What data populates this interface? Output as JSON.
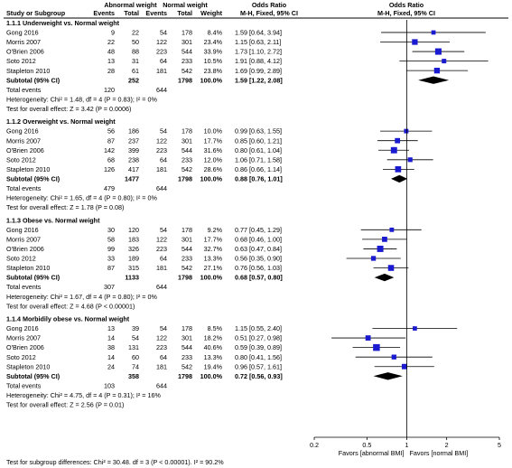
{
  "header": {
    "study_label": "Study or Subgroup",
    "group1_label": "Abnormal weight",
    "group2_label": "Normal weight",
    "events_label": "Events",
    "total_label": "Total",
    "weight_label": "Weight",
    "or_label": "Odds Ratio",
    "or_method_label": "M-H, Fixed, 95% CI"
  },
  "chart_data": {
    "type": "forest",
    "x_scale": "log",
    "xlim": [
      0.2,
      5
    ],
    "ticks": [
      "0.2",
      "0.5",
      "1",
      "2",
      "5"
    ],
    "axis_left_label": "Favors [abnormal BMI]",
    "axis_right_label": "Favors [normal BMI]",
    "subgroups": [
      {
        "title": "1.1.1 Underweight vs. Normal weight",
        "studies": [
          {
            "name": "Gong 2016",
            "e1": "9",
            "t1": "22",
            "e2": "54",
            "t2": "178",
            "weight": "8.4%",
            "or_text": "1.59 [0.64, 3.94]",
            "or": 1.59,
            "lo": 0.64,
            "hi": 3.94
          },
          {
            "name": "Morris 2007",
            "e1": "22",
            "t1": "50",
            "e2": "122",
            "t2": "301",
            "weight": "23.4%",
            "or_text": "1.15 [0.63, 2.11]",
            "or": 1.15,
            "lo": 0.63,
            "hi": 2.11
          },
          {
            "name": "O'Brien 2006",
            "e1": "48",
            "t1": "88",
            "e2": "223",
            "t2": "544",
            "weight": "33.9%",
            "or_text": "1.73 [1.10, 2.72]",
            "or": 1.73,
            "lo": 1.1,
            "hi": 2.72
          },
          {
            "name": "Soto 2012",
            "e1": "13",
            "t1": "31",
            "e2": "64",
            "t2": "233",
            "weight": "10.5%",
            "or_text": "1.91 [0.88, 4.12]",
            "or": 1.91,
            "lo": 0.88,
            "hi": 4.12
          },
          {
            "name": "Stapleton 2010",
            "e1": "28",
            "t1": "61",
            "e2": "181",
            "t2": "542",
            "weight": "23.8%",
            "or_text": "1.69 [0.99, 2.89]",
            "or": 1.69,
            "lo": 0.99,
            "hi": 2.89
          }
        ],
        "subtotal": {
          "label": "Subtotal (95% CI)",
          "t1": "252",
          "t2": "1798",
          "weight": "100.0%",
          "or_text": "1.59 [1.22, 2.08]",
          "or": 1.59,
          "lo": 1.22,
          "hi": 2.08
        },
        "total_events": {
          "label": "Total events",
          "e1": "120",
          "e2": "644"
        },
        "heterogeneity": "Heterogeneity: Chi² = 1.48, df = 4 (P = 0.83); I² = 0%",
        "overall_effect": "Test for overall effect: Z = 3.42 (P = 0.0006)"
      },
      {
        "title": "1.1.2 Overweight vs. Normal weight",
        "studies": [
          {
            "name": "Gong 2016",
            "e1": "56",
            "t1": "186",
            "e2": "54",
            "t2": "178",
            "weight": "10.0%",
            "or_text": "0.99 [0.63, 1.55]",
            "or": 0.99,
            "lo": 0.63,
            "hi": 1.55
          },
          {
            "name": "Morris 2007",
            "e1": "87",
            "t1": "237",
            "e2": "122",
            "t2": "301",
            "weight": "17.7%",
            "or_text": "0.85 [0.60, 1.21]",
            "or": 0.85,
            "lo": 0.6,
            "hi": 1.21
          },
          {
            "name": "O'Brien 2006",
            "e1": "142",
            "t1": "399",
            "e2": "223",
            "t2": "544",
            "weight": "31.6%",
            "or_text": "0.80 [0.61, 1.04]",
            "or": 0.8,
            "lo": 0.61,
            "hi": 1.04
          },
          {
            "name": "Soto 2012",
            "e1": "68",
            "t1": "238",
            "e2": "64",
            "t2": "233",
            "weight": "12.0%",
            "or_text": "1.06 [0.71, 1.58]",
            "or": 1.06,
            "lo": 0.71,
            "hi": 1.58
          },
          {
            "name": "Stapleton 2010",
            "e1": "126",
            "t1": "417",
            "e2": "181",
            "t2": "542",
            "weight": "28.6%",
            "or_text": "0.86 [0.66, 1.14]",
            "or": 0.86,
            "lo": 0.66,
            "hi": 1.14
          }
        ],
        "subtotal": {
          "label": "Subtotal (95% CI)",
          "t1": "1477",
          "t2": "1798",
          "weight": "100.0%",
          "or_text": "0.88 [0.76, 1.01]",
          "or": 0.88,
          "lo": 0.76,
          "hi": 1.01
        },
        "total_events": {
          "label": "Total events",
          "e1": "479",
          "e2": "644"
        },
        "heterogeneity": "Heterogeneity: Chi² = 1.65, df = 4 (P = 0.80); I² = 0%",
        "overall_effect": "Test for overall effect: Z = 1.78 (P = 0.08)"
      },
      {
        "title": "1.1.3 Obese vs. Normal weight",
        "studies": [
          {
            "name": "Gong 2016",
            "e1": "30",
            "t1": "120",
            "e2": "54",
            "t2": "178",
            "weight": "9.2%",
            "or_text": "0.77 [0.45, 1.29]",
            "or": 0.77,
            "lo": 0.45,
            "hi": 1.29
          },
          {
            "name": "Morris 2007",
            "e1": "58",
            "t1": "183",
            "e2": "122",
            "t2": "301",
            "weight": "17.7%",
            "or_text": "0.68 [0.46, 1.00]",
            "or": 0.68,
            "lo": 0.46,
            "hi": 1.0
          },
          {
            "name": "O'Brien 2006",
            "e1": "99",
            "t1": "326",
            "e2": "223",
            "t2": "544",
            "weight": "32.7%",
            "or_text": "0.63 [0.47, 0.84]",
            "or": 0.63,
            "lo": 0.47,
            "hi": 0.84
          },
          {
            "name": "Soto 2012",
            "e1": "33",
            "t1": "189",
            "e2": "64",
            "t2": "233",
            "weight": "13.3%",
            "or_text": "0.56 [0.35, 0.90]",
            "or": 0.56,
            "lo": 0.35,
            "hi": 0.9
          },
          {
            "name": "Stapleton 2010",
            "e1": "87",
            "t1": "315",
            "e2": "181",
            "t2": "542",
            "weight": "27.1%",
            "or_text": "0.76 [0.56, 1.03]",
            "or": 0.76,
            "lo": 0.56,
            "hi": 1.03
          }
        ],
        "subtotal": {
          "label": "Subtotal (95% CI)",
          "t1": "1133",
          "t2": "1798",
          "weight": "100.0%",
          "or_text": "0.68 [0.57, 0.80]",
          "or": 0.68,
          "lo": 0.57,
          "hi": 0.8
        },
        "total_events": {
          "label": "Total events",
          "e1": "307",
          "e2": "644"
        },
        "heterogeneity": "Heterogeneity: Chi² = 1.67, df = 4 (P = 0.80); I² = 0%",
        "overall_effect": "Test for overall effect: Z = 4.68 (P < 0.00001)"
      },
      {
        "title": "1.1.4 Morbidily obese vs. Normal weight",
        "studies": [
          {
            "name": "Gong 2016",
            "e1": "13",
            "t1": "39",
            "e2": "54",
            "t2": "178",
            "weight": "8.5%",
            "or_text": "1.15 [0.55, 2.40]",
            "or": 1.15,
            "lo": 0.55,
            "hi": 2.4
          },
          {
            "name": "Morris 2007",
            "e1": "14",
            "t1": "54",
            "e2": "122",
            "t2": "301",
            "weight": "18.2%",
            "or_text": "0.51 [0.27, 0.98]",
            "or": 0.51,
            "lo": 0.27,
            "hi": 0.98
          },
          {
            "name": "O'Brien 2006",
            "e1": "38",
            "t1": "131",
            "e2": "223",
            "t2": "544",
            "weight": "40.6%",
            "or_text": "0.59 [0.39, 0.89]",
            "or": 0.59,
            "lo": 0.39,
            "hi": 0.89
          },
          {
            "name": "Soto 2012",
            "e1": "14",
            "t1": "60",
            "e2": "64",
            "t2": "233",
            "weight": "13.3%",
            "or_text": "0.80 [0.41, 1.56]",
            "or": 0.8,
            "lo": 0.41,
            "hi": 1.56
          },
          {
            "name": "Stapleton 2010",
            "e1": "24",
            "t1": "74",
            "e2": "181",
            "t2": "542",
            "weight": "19.4%",
            "or_text": "0.96 [0.57, 1.61]",
            "or": 0.96,
            "lo": 0.57,
            "hi": 1.61
          }
        ],
        "subtotal": {
          "label": "Subtotal (95% CI)",
          "t1": "358",
          "t2": "1798",
          "weight": "100.0%",
          "or_text": "0.72 [0.56, 0.93]",
          "or": 0.72,
          "lo": 0.56,
          "hi": 0.93
        },
        "total_events": {
          "label": "Total events",
          "e1": "103",
          "e2": "644"
        },
        "heterogeneity": "Heterogeneity: Chi² = 4.75, df = 4 (P = 0.31); I² = 16%",
        "overall_effect": "Test for overall effect: Z = 2.56 (P = 0.01)"
      }
    ],
    "subgroup_test": "Test for subgroup differences: Chi² = 30.48. df = 3 (P < 0.00001). I² = 90.2%",
    "colors": {
      "square": "#1a1ad0",
      "line": "#000000",
      "diamond": "#000000"
    }
  }
}
